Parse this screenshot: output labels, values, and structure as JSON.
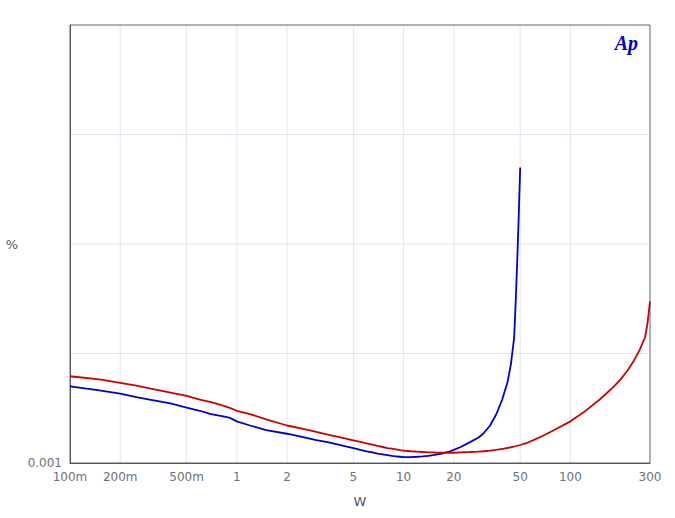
{
  "chart_data": {
    "type": "line",
    "xlabel": "W",
    "ylabel": "%",
    "log": true,
    "grid": true,
    "xlim": [
      0.1,
      300
    ],
    "ylim": [
      0.001,
      10.0
    ],
    "xticks": [
      {
        "value": 0.1,
        "label": "100m"
      },
      {
        "value": 0.2,
        "label": "200m"
      },
      {
        "value": 0.5,
        "label": "500m"
      },
      1,
      2,
      5,
      10,
      20,
      50,
      100,
      300
    ],
    "yticks": [
      0.001,
      {
        "value": 0.01,
        "label": null
      },
      {
        "value": 0.1,
        "label": null
      },
      {
        "value": 1.0,
        "label": null
      },
      {
        "value": 10.0,
        "label": null
      }
    ],
    "annotations": [
      {
        "text": "Ap",
        "color": "#0000cc"
      }
    ],
    "series": [
      {
        "color": "#0000cc",
        "x": [
          0.1,
          0.15,
          0.2,
          0.25,
          0.3,
          0.4,
          0.5,
          0.6,
          0.7,
          0.8,
          0.9,
          1.0,
          1.2,
          1.5,
          2.0,
          2.5,
          3.0,
          3.5,
          4.0,
          4.5,
          5.0,
          5.5,
          6.0,
          6.5,
          7.0,
          7.5,
          8.0,
          8.5,
          9.0,
          9.5,
          10.0,
          11.0,
          12.0,
          13.0,
          14.0,
          15.0,
          16.0,
          17.0,
          18.0,
          19.0,
          20.0,
          22.0,
          25.0,
          28.0,
          30.0,
          33.0,
          36.0,
          39.0,
          42.0,
          44.0,
          46.0,
          47.0,
          48.0,
          49.0,
          50.0
        ],
        "values": [
          0.005,
          0.0046,
          0.0043,
          0.004,
          0.0038,
          0.0035,
          0.0032,
          0.003,
          0.0028,
          0.0027,
          0.0026,
          0.0024,
          0.0022,
          0.002,
          0.00185,
          0.00172,
          0.00162,
          0.00155,
          0.00148,
          0.00142,
          0.00137,
          0.00132,
          0.00128,
          0.00125,
          0.00122,
          0.0012,
          0.00118,
          0.00116,
          0.00115,
          0.00114,
          0.00113,
          0.00113,
          0.00114,
          0.00115,
          0.00116,
          0.00118,
          0.0012,
          0.00122,
          0.00125,
          0.00128,
          0.00132,
          0.0014,
          0.00155,
          0.0017,
          0.00185,
          0.0022,
          0.0028,
          0.0038,
          0.0055,
          0.008,
          0.014,
          0.03,
          0.07,
          0.18,
          0.5
        ]
      },
      {
        "color": "#cc0000",
        "x": [
          0.1,
          0.15,
          0.2,
          0.25,
          0.3,
          0.4,
          0.5,
          0.6,
          0.7,
          0.8,
          0.9,
          1.0,
          1.2,
          1.5,
          2.0,
          2.5,
          3.0,
          3.5,
          4.0,
          4.5,
          5.0,
          5.5,
          6.0,
          6.5,
          7.0,
          7.5,
          8.0,
          8.5,
          9.0,
          9.5,
          10.0,
          11.0,
          12.0,
          13.0,
          14.0,
          15.0,
          16.0,
          17.0,
          18.0,
          19.0,
          20.0,
          22.0,
          25.0,
          28.0,
          30.0,
          33.0,
          36.0,
          40.0,
          45.0,
          50.0,
          55.0,
          60.0,
          70.0,
          80.0,
          100.0,
          120.0,
          150.0,
          180.0,
          200.0,
          220.0,
          240.0,
          260.0,
          280.0,
          290.0,
          300.0
        ],
        "values": [
          0.0062,
          0.0058,
          0.0054,
          0.0051,
          0.0048,
          0.0044,
          0.0041,
          0.0038,
          0.0036,
          0.0034,
          0.0032,
          0.003,
          0.0028,
          0.0025,
          0.0022,
          0.00205,
          0.00192,
          0.00182,
          0.00174,
          0.00167,
          0.00161,
          0.00156,
          0.00151,
          0.00147,
          0.00143,
          0.0014,
          0.00137,
          0.00135,
          0.00133,
          0.00131,
          0.0013,
          0.00128,
          0.00127,
          0.00126,
          0.00125,
          0.00125,
          0.00124,
          0.00124,
          0.00124,
          0.00124,
          0.00124,
          0.00125,
          0.00126,
          0.00127,
          0.00128,
          0.0013,
          0.00132,
          0.00135,
          0.0014,
          0.00146,
          0.00153,
          0.00162,
          0.0018,
          0.002,
          0.0024,
          0.0029,
          0.0038,
          0.0049,
          0.0058,
          0.007,
          0.0086,
          0.0108,
          0.014,
          0.019,
          0.03
        ]
      }
    ]
  }
}
